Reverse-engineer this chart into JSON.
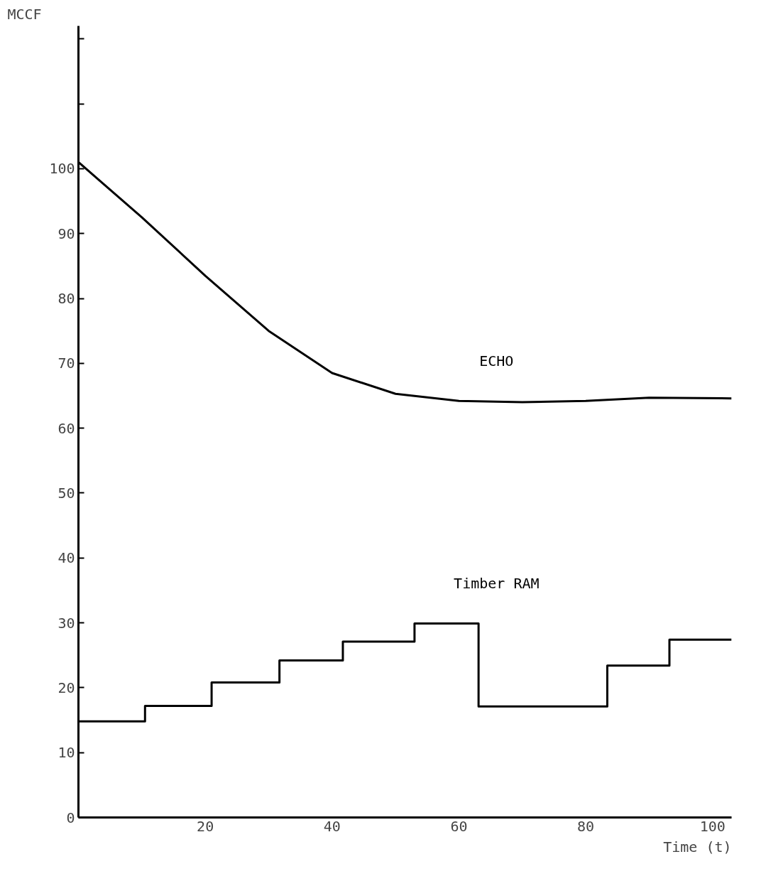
{
  "chart_data": {
    "type": "line",
    "xlabel": "Time (t)",
    "ylabel": "MCCF",
    "xlim": [
      0,
      103
    ],
    "ylim": [
      0,
      122
    ],
    "xticks": [
      20,
      40,
      60,
      80,
      100
    ],
    "yticks": [
      0,
      10,
      20,
      30,
      40,
      50,
      60,
      70,
      80,
      90,
      100,
      {
        "value": 110,
        "label": null
      },
      {
        "value": 120,
        "label": null
      }
    ],
    "grid": false,
    "legend": false,
    "marker": "none",
    "line_style": "solid",
    "series": [
      {
        "name": "ECHO",
        "color": "#000000",
        "x": [
          0,
          10,
          20,
          30,
          40,
          50,
          60,
          70,
          80,
          90,
          103
        ],
        "values": [
          101,
          92.5,
          83.5,
          75,
          68.5,
          65.3,
          64.2,
          64,
          64.2,
          64.7,
          64.6
        ]
      },
      {
        "name": "Timber RAM",
        "color": "#000000",
        "type": "step",
        "x": [
          0,
          10.5,
          21,
          31.7,
          41.7,
          53,
          63.1,
          83.4,
          93.2,
          103
        ],
        "values": [
          14.8,
          17.2,
          20.8,
          24.2,
          27.1,
          29.9,
          17.1,
          23.4,
          27.4,
          27.4
        ]
      }
    ]
  }
}
